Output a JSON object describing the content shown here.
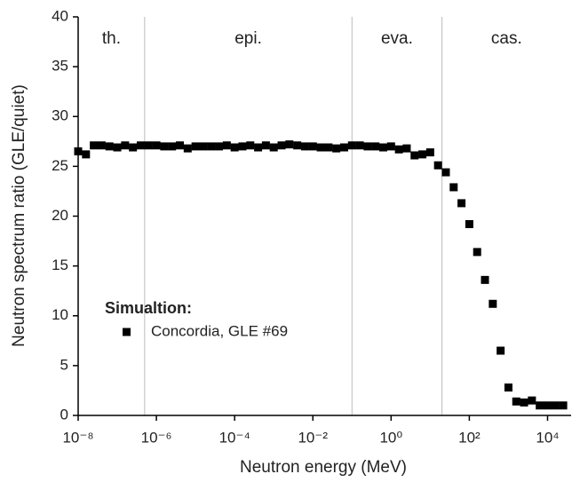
{
  "chart_data": {
    "type": "scatter",
    "x_label": "Neutron energy (MeV)",
    "y_label": "Neutron spectrum ratio (GLE/quiet)",
    "x_scale": "log",
    "xlim": [
      1e-08,
      40000.0
    ],
    "ylim": [
      0,
      40
    ],
    "xticks": [
      {
        "value": 1e-08,
        "label": "10⁻⁸"
      },
      {
        "value": 1e-06,
        "label": "10⁻⁶"
      },
      {
        "value": 0.0001,
        "label": "10⁻⁴"
      },
      {
        "value": 0.01,
        "label": "10⁻²"
      },
      {
        "value": 1,
        "label": "10⁰"
      },
      {
        "value": 100,
        "label": "10²"
      },
      {
        "value": 10000,
        "label": "10⁴"
      }
    ],
    "yticks": [
      0,
      5,
      10,
      15,
      20,
      25,
      30,
      35,
      40
    ],
    "region_bounds": [
      5e-07,
      0.1,
      20
    ],
    "region_labels": [
      "th.",
      "epi.",
      "eva.",
      "cas."
    ],
    "legend_title": "Simualtion:",
    "legend_position": "lower left",
    "series": [
      {
        "name": "Concordia, GLE #69",
        "color": "#000000",
        "x": [
          1e-08,
          1.585e-08,
          2.512e-08,
          3.981e-08,
          6.31e-08,
          1e-07,
          1.585e-07,
          2.512e-07,
          3.981e-07,
          6.31e-07,
          1e-06,
          1.585e-06,
          2.512e-06,
          3.981e-06,
          6.31e-06,
          1e-05,
          1.585e-05,
          2.512e-05,
          3.981e-05,
          6.31e-05,
          0.0001,
          0.0001585,
          0.0002512,
          0.0003981,
          0.000631,
          0.001,
          0.001585,
          0.002512,
          0.003981,
          0.00631,
          0.01,
          0.01585,
          0.02512,
          0.03981,
          0.0631,
          0.1,
          0.1585,
          0.2512,
          0.3981,
          0.631,
          1,
          1.585,
          2.512,
          3.981,
          6.31,
          10,
          15.85,
          25.12,
          39.81,
          63.1,
          100,
          158.5,
          251.2,
          398.1,
          631,
          1000,
          1585,
          2512,
          3981,
          6310,
          10000,
          15850,
          25120
        ],
        "values": [
          26.5,
          26.2,
          27.1,
          27.1,
          27.0,
          26.9,
          27.1,
          26.9,
          27.1,
          27.1,
          27.1,
          27.0,
          27.0,
          27.1,
          26.8,
          27.0,
          27.0,
          27.0,
          27.0,
          27.1,
          26.9,
          27.0,
          27.1,
          26.9,
          27.1,
          26.9,
          27.1,
          27.2,
          27.1,
          27.0,
          27.0,
          26.9,
          26.9,
          26.8,
          26.9,
          27.1,
          27.1,
          27.0,
          27.0,
          26.9,
          27.0,
          26.7,
          26.8,
          26.1,
          26.2,
          26.4,
          25.1,
          24.4,
          22.9,
          21.3,
          19.2,
          16.4,
          13.6,
          11.2,
          6.5,
          2.8,
          1.4,
          1.3,
          1.5,
          1.0,
          1.0,
          1.0,
          1.0
        ]
      }
    ]
  }
}
